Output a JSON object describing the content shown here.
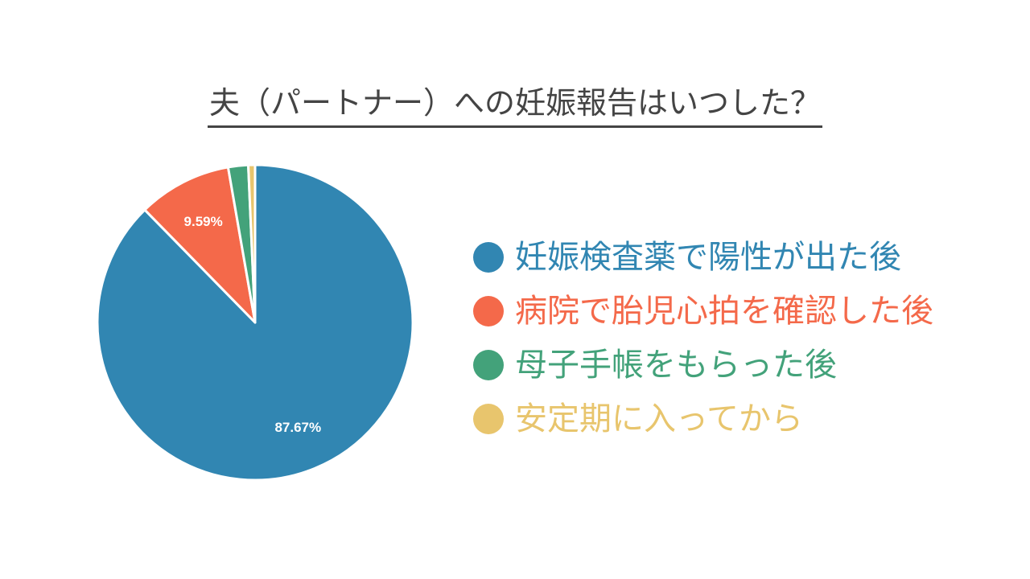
{
  "chart_data": {
    "type": "pie",
    "title": "夫（パートナー）への妊娠報告はいつした？",
    "categories": [
      "妊娠検査薬で陽性が出た後",
      "病院で胎児心拍を確認した後",
      "母子手帳をもらった後",
      "安定期に入ってから"
    ],
    "values": [
      87.67,
      9.59,
      2.05,
      0.69
    ],
    "data_labels": [
      "87.67%",
      "9.59%",
      "",
      ""
    ],
    "colors": [
      "#3186b2",
      "#f4694a",
      "#43a27a",
      "#e8c56d"
    ],
    "legend_position": "right"
  }
}
